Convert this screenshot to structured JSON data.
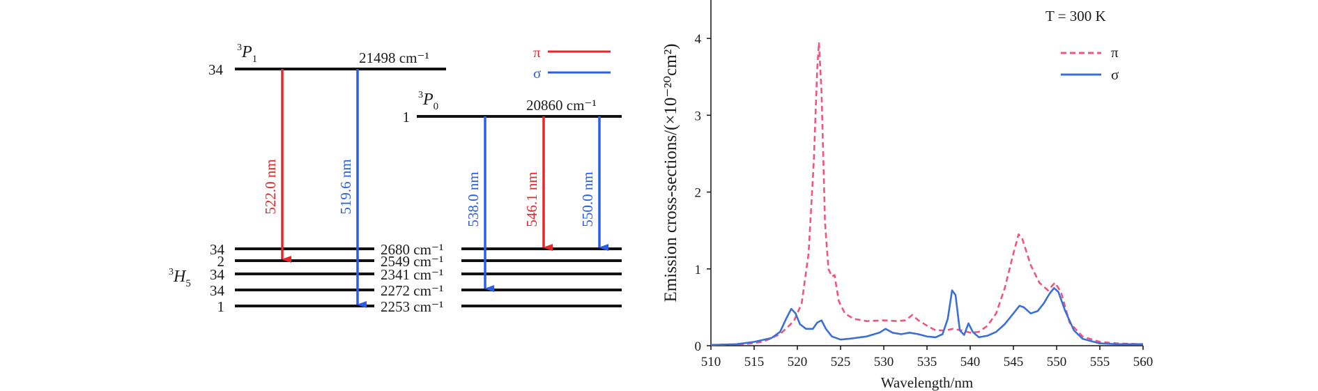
{
  "diagram": {
    "levels": {
      "p1": {
        "term": "P",
        "sup": "3",
        "sub": "1",
        "degeneracy": "34",
        "energy": "21498 cm⁻¹"
      },
      "p0": {
        "term": "P",
        "sup": "3",
        "sub": "0",
        "degeneracy": "1",
        "energy": "20860 cm⁻¹"
      },
      "h5": {
        "term": "H",
        "sup": "3",
        "sub": "5",
        "sublevels": [
          {
            "degeneracy": "34",
            "energy": "2680 cm⁻¹"
          },
          {
            "degeneracy": "2",
            "energy": "2549 cm⁻¹"
          },
          {
            "degeneracy": "34",
            "energy": "2341 cm⁻¹"
          },
          {
            "degeneracy": "34",
            "energy": "2272 cm⁻¹"
          },
          {
            "degeneracy": "1",
            "energy": "2253 cm⁻¹"
          }
        ]
      }
    },
    "transitions": [
      {
        "label": "522.0 nm",
        "polarization": "pi",
        "from": "p1",
        "to_index": 1
      },
      {
        "label": "519.6 nm",
        "polarization": "sigma",
        "from": "p1",
        "to_index": 4
      },
      {
        "label": "538.0 nm",
        "polarization": "sigma",
        "from": "p0",
        "to_index": 3
      },
      {
        "label": "546.1 nm",
        "polarization": "pi",
        "from": "p0",
        "to_index": 0
      },
      {
        "label": "550.0 nm",
        "polarization": "sigma",
        "from": "p0",
        "to_index": 0
      }
    ],
    "legend": [
      {
        "label": "π",
        "color": "#e8262a"
      },
      {
        "label": "σ",
        "color": "#2a5ee8"
      }
    ]
  },
  "chart_data": {
    "type": "line",
    "ylabel": "Emission cross-sections/(×10⁻²⁰cm²)",
    "xlabel": "Wavelength/nm",
    "xlim": [
      510,
      560
    ],
    "ylim": [
      0,
      4.5
    ],
    "xticks": [
      "510",
      "515",
      "520",
      "525",
      "530",
      "535",
      "540",
      "545",
      "550",
      "555",
      "560"
    ],
    "yticks": [
      "0",
      "1",
      "2",
      "3",
      "4"
    ],
    "legend_title": "T = 300 K",
    "legend_position": "top-right",
    "grid": false,
    "series": [
      {
        "name": "π",
        "color": "#f2557c",
        "style": "dashed",
        "x": [
          510,
          514,
          516,
          518,
          519.6,
          520.5,
          521.3,
          521.9,
          522.3,
          522.5,
          522.8,
          523.2,
          523.6,
          524,
          524.3,
          524.8,
          525.5,
          526.5,
          528,
          530,
          531.5,
          532.5,
          533.3,
          534,
          535,
          536,
          537.2,
          538,
          539,
          540,
          541,
          542,
          543,
          544,
          545,
          545.6,
          546,
          547,
          548,
          549,
          549.8,
          550.5,
          551.5,
          553,
          555,
          557,
          560
        ],
        "y": [
          0.01,
          0.02,
          0.05,
          0.15,
          0.32,
          0.55,
          1.2,
          2.4,
          3.6,
          3.95,
          3.3,
          1.6,
          1.0,
          0.9,
          0.92,
          0.58,
          0.42,
          0.35,
          0.32,
          0.33,
          0.32,
          0.33,
          0.4,
          0.33,
          0.26,
          0.2,
          0.2,
          0.22,
          0.2,
          0.17,
          0.18,
          0.26,
          0.42,
          0.75,
          1.2,
          1.45,
          1.4,
          1.05,
          0.82,
          0.72,
          0.82,
          0.7,
          0.3,
          0.12,
          0.05,
          0.03,
          0.02
        ]
      },
      {
        "name": "σ",
        "color": "#3a6fd8",
        "style": "solid",
        "x": [
          510,
          513,
          515,
          517,
          518,
          518.7,
          519.3,
          519.8,
          520.3,
          521,
          521.8,
          522.3,
          522.8,
          523.3,
          524,
          525,
          526,
          528,
          529.5,
          530.2,
          531,
          532,
          533,
          534,
          535,
          536,
          536.8,
          537.4,
          537.9,
          538.3,
          538.8,
          539.3,
          539.8,
          540.3,
          541,
          542,
          543,
          544,
          545,
          545.7,
          546.2,
          547,
          547.8,
          548.5,
          549.2,
          549.7,
          550.2,
          551,
          552,
          553,
          555,
          557,
          560
        ],
        "y": [
          0.01,
          0.02,
          0.05,
          0.1,
          0.18,
          0.35,
          0.48,
          0.42,
          0.28,
          0.22,
          0.22,
          0.3,
          0.33,
          0.22,
          0.12,
          0.08,
          0.09,
          0.12,
          0.17,
          0.22,
          0.17,
          0.15,
          0.17,
          0.15,
          0.12,
          0.11,
          0.15,
          0.35,
          0.72,
          0.66,
          0.2,
          0.14,
          0.29,
          0.18,
          0.11,
          0.13,
          0.18,
          0.28,
          0.42,
          0.52,
          0.5,
          0.42,
          0.45,
          0.55,
          0.68,
          0.75,
          0.7,
          0.45,
          0.2,
          0.09,
          0.03,
          0.02,
          0.02
        ]
      }
    ]
  }
}
